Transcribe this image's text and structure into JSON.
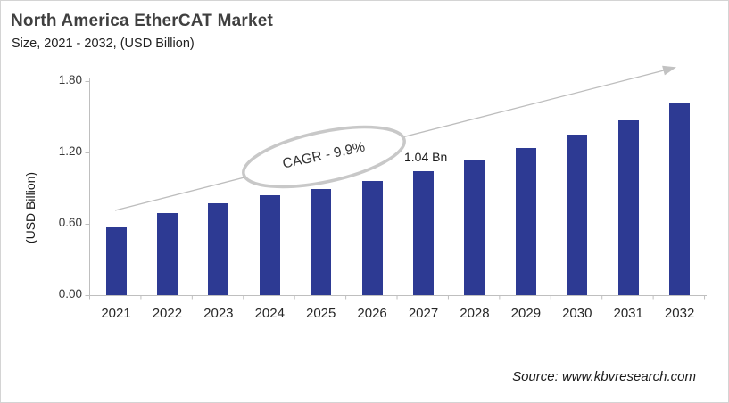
{
  "header": {
    "title": "North America EtherCAT Market",
    "subtitle": "Size, 2021 - 2032, (USD Billion)"
  },
  "chart_data": {
    "type": "bar",
    "title": "North America EtherCAT Market",
    "subtitle": "Size, 2021 - 2032, (USD Billion)",
    "categories": [
      "2021",
      "2022",
      "2023",
      "2024",
      "2025",
      "2026",
      "2027",
      "2028",
      "2029",
      "2030",
      "2031",
      "2032"
    ],
    "values": [
      0.57,
      0.69,
      0.77,
      0.84,
      0.89,
      0.96,
      1.04,
      1.13,
      1.24,
      1.35,
      1.47,
      1.62
    ],
    "xlabel": "",
    "ylabel": "(USD Billion)",
    "ylim": [
      0,
      1.8
    ],
    "y_ticks": [
      "0.00",
      "0.60",
      "1.20",
      "1.80"
    ],
    "grid": "off",
    "legend": "none",
    "bar_color": "#2d3a93",
    "axis_color": "#bfbfbf",
    "annotations": {
      "cagr": "CAGR - 9.9%",
      "point_label": "1.04 Bn",
      "point_label_category": "2027",
      "trend_arrow": "up-right"
    }
  },
  "footer": {
    "source": "Source: www.kbvresearch.com"
  }
}
